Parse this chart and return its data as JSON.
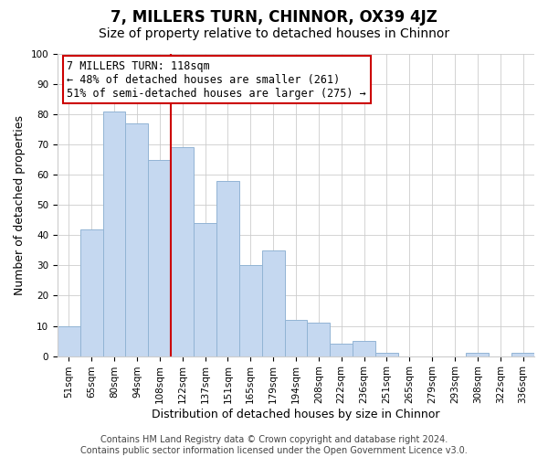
{
  "title": "7, MILLERS TURN, CHINNOR, OX39 4JZ",
  "subtitle": "Size of property relative to detached houses in Chinnor",
  "xlabel": "Distribution of detached houses by size in Chinnor",
  "ylabel": "Number of detached properties",
  "footer_line1": "Contains HM Land Registry data © Crown copyright and database right 2024.",
  "footer_line2": "Contains public sector information licensed under the Open Government Licence v3.0.",
  "categories": [
    "51sqm",
    "65sqm",
    "80sqm",
    "94sqm",
    "108sqm",
    "122sqm",
    "137sqm",
    "151sqm",
    "165sqm",
    "179sqm",
    "194sqm",
    "208sqm",
    "222sqm",
    "236sqm",
    "251sqm",
    "265sqm",
    "279sqm",
    "293sqm",
    "308sqm",
    "322sqm",
    "336sqm"
  ],
  "values": [
    10,
    42,
    81,
    77,
    65,
    69,
    44,
    58,
    30,
    35,
    12,
    11,
    4,
    5,
    1,
    0,
    0,
    0,
    1,
    0,
    1
  ],
  "bar_color": "#c5d8f0",
  "bar_edge_color": "#92b4d4",
  "vline_x_index": 5,
  "vline_color": "#cc0000",
  "annotation_text": "7 MILLERS TURN: 118sqm\n← 48% of detached houses are smaller (261)\n51% of semi-detached houses are larger (275) →",
  "ylim": [
    0,
    100
  ],
  "yticks": [
    0,
    10,
    20,
    30,
    40,
    50,
    60,
    70,
    80,
    90,
    100
  ],
  "bg_color": "#ffffff",
  "grid_color": "#cccccc",
  "title_fontsize": 12,
  "subtitle_fontsize": 10,
  "axis_label_fontsize": 9,
  "tick_fontsize": 7.5,
  "annotation_fontsize": 8.5,
  "footer_fontsize": 7
}
